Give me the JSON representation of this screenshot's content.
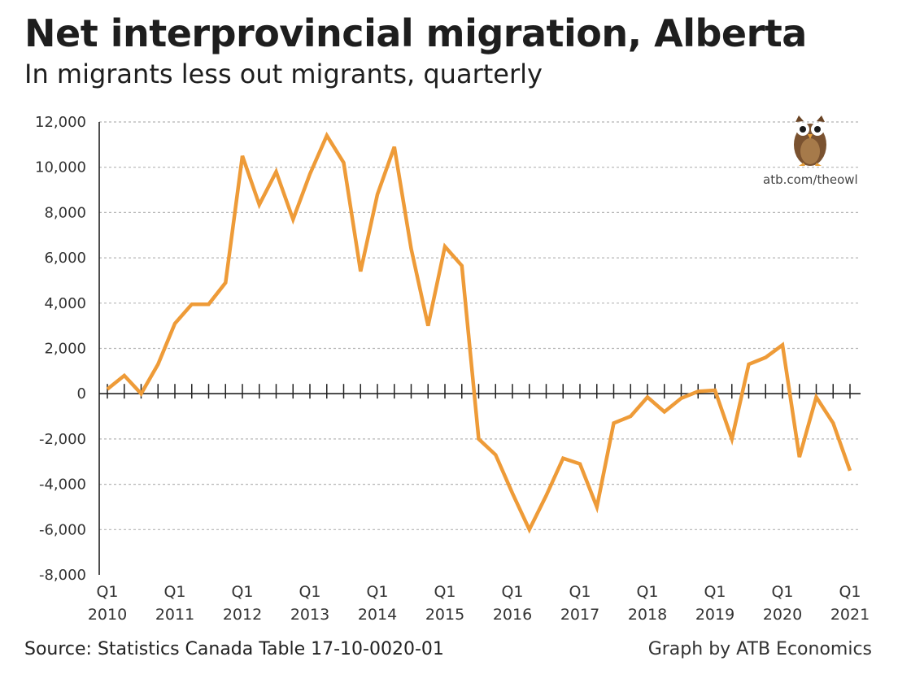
{
  "chart_data": {
    "type": "line",
    "title": "Net interprovincial migration, Alberta",
    "subtitle": "In migrants less out migrants, quarterly",
    "xlabel": "",
    "ylabel": "",
    "ylim": [
      -8000,
      12000
    ],
    "yticks": [
      "12,000",
      "10,000",
      "8,000",
      "6,000",
      "4,000",
      "2,000",
      "0",
      "-2,000",
      "-4,000",
      "-6,000",
      "-8,000"
    ],
    "ytick_values": [
      12000,
      10000,
      8000,
      6000,
      4000,
      2000,
      0,
      -2000,
      -4000,
      -6000,
      -8000
    ],
    "xtick_labels": [
      {
        "q": "Q1",
        "year": "2010",
        "index": 0
      },
      {
        "q": "Q1",
        "year": "2011",
        "index": 4
      },
      {
        "q": "Q1",
        "year": "2012",
        "index": 8
      },
      {
        "q": "Q1",
        "year": "2013",
        "index": 12
      },
      {
        "q": "Q1",
        "year": "2014",
        "index": 16
      },
      {
        "q": "Q1",
        "year": "2015",
        "index": 20
      },
      {
        "q": "Q1",
        "year": "2016",
        "index": 24
      },
      {
        "q": "Q1",
        "year": "2017",
        "index": 28
      },
      {
        "q": "Q1",
        "year": "2018",
        "index": 32
      },
      {
        "q": "Q1",
        "year": "2019",
        "index": 36
      },
      {
        "q": "Q1",
        "year": "2020",
        "index": 40
      },
      {
        "q": "Q1",
        "year": "2021",
        "index": 44
      }
    ],
    "series": [
      {
        "name": "Net interprovincial migration",
        "color": "#EE9B38",
        "values": [
          200,
          800,
          0,
          1300,
          3100,
          3950,
          3950,
          4900,
          10500,
          8350,
          9800,
          7700,
          9700,
          11400,
          10200,
          5400,
          8800,
          10900,
          6400,
          3000,
          6500,
          5650,
          -2000,
          -2700,
          -4400,
          -6000,
          -4500,
          -2850,
          -3100,
          -5000,
          -1300,
          -1000,
          -150,
          -800,
          -200,
          100,
          150,
          -2000,
          1300,
          1600,
          2150,
          -2800,
          -150,
          -1300,
          -3400
        ]
      }
    ],
    "grid": true
  },
  "footer": {
    "source": "Source: Statistics Canada Table 17-10-0020-01",
    "credit": "Graph by ATB Economics"
  },
  "owl": {
    "url": "atb.com/theowl",
    "icon": "owl-icon"
  },
  "colors": {
    "line": "#EE9B38",
    "grid": "#b5b5b5",
    "axis": "#222222",
    "owl_body": "#7a5230",
    "owl_belly": "#a67a4a"
  }
}
